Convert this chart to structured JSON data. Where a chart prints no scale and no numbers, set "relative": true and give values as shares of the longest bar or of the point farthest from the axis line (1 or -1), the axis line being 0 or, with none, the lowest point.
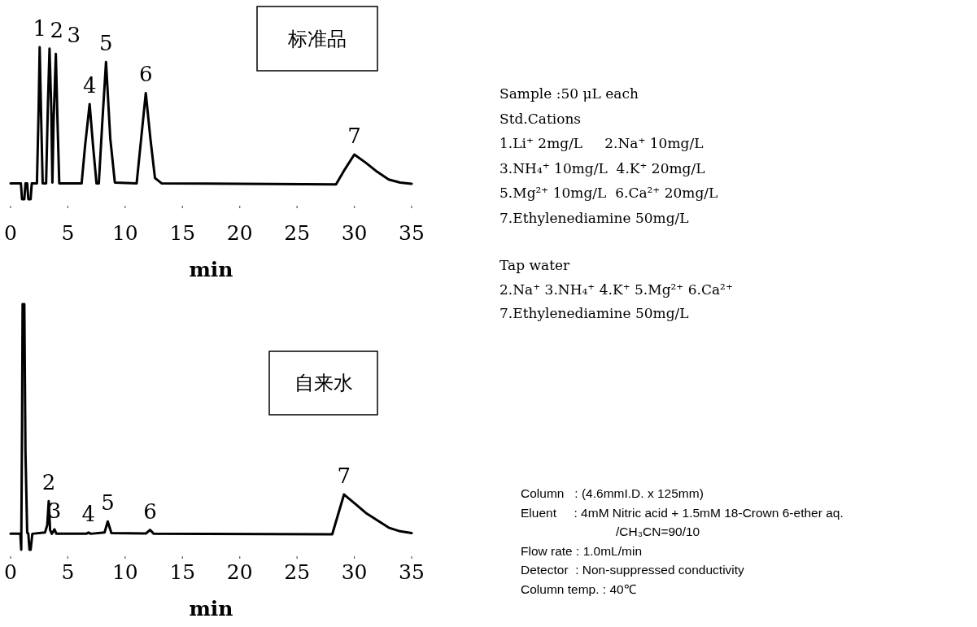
{
  "chart_data": [
    {
      "type": "line",
      "title": "标准品",
      "xlabel": "min",
      "color": "#000000",
      "relative": true,
      "xlim": [
        0,
        35
      ],
      "xticks": [
        0,
        5,
        10,
        15,
        20,
        25,
        30,
        35
      ],
      "x": [
        0,
        0.9,
        1.0,
        1.2,
        1.3,
        1.45,
        1.55,
        1.75,
        1.85,
        2.3,
        2.45,
        2.54,
        2.65,
        2.8,
        3.1,
        3.25,
        3.4,
        3.55,
        3.65,
        3.75,
        3.95,
        4.1,
        4.25,
        6.2,
        6.5,
        6.9,
        7.2,
        7.5,
        7.7,
        8.0,
        8.33,
        8.7,
        9.1,
        11.0,
        11.4,
        11.8,
        12.2,
        12.6,
        13.2,
        28.4,
        29.2,
        30.0,
        31,
        32,
        33,
        34,
        35
      ],
      "values": [
        0.104,
        0.104,
        0.0,
        0.0,
        0.104,
        0.104,
        0.0,
        0.0,
        0.104,
        0.104,
        0.6,
        1.0,
        0.6,
        0.104,
        0.104,
        0.6,
        0.99,
        0.6,
        0.11,
        0.5,
        0.956,
        0.5,
        0.104,
        0.104,
        0.35,
        0.626,
        0.35,
        0.104,
        0.104,
        0.5,
        0.903,
        0.4,
        0.11,
        0.104,
        0.4,
        0.698,
        0.4,
        0.14,
        0.104,
        0.098,
        0.2,
        0.294,
        0.24,
        0.18,
        0.13,
        0.11,
        0.102
      ],
      "annotations": [
        {
          "text": "1",
          "x": 2.54,
          "y": 1.0
        },
        {
          "text": "2",
          "x": 3.4,
          "y": 0.99
        },
        {
          "text": "3",
          "x": 3.95,
          "y": 0.956
        },
        {
          "text": "4",
          "x": 6.9,
          "y": 0.626
        },
        {
          "text": "5",
          "x": 8.33,
          "y": 0.903
        },
        {
          "text": "6",
          "x": 11.8,
          "y": 0.698
        },
        {
          "text": "7",
          "x": 30.0,
          "y": 0.294
        },
        "Sample :50 μL each",
        "Std.Cations",
        "1.Li⁺ 2mg/L     2.Na⁺ 10mg/L",
        "3.NH₄⁺ 10mg/L  4.K⁺ 20mg/L",
        "5.Mg²⁺ 10mg/L  6.Ca²⁺ 20mg/L",
        "7.Ethylenediamine 50mg/L"
      ]
    },
    {
      "type": "line",
      "title": "自来水",
      "xlabel": "min",
      "color": "#000000",
      "relative": true,
      "xlim": [
        0,
        35
      ],
      "xticks": [
        0,
        5,
        10,
        15,
        20,
        25,
        30,
        35
      ],
      "x": [
        0,
        0.85,
        0.93,
        1.0,
        1.05,
        1.2,
        1.3,
        1.45,
        1.55,
        1.65,
        1.75,
        1.9,
        3.0,
        3.2,
        3.33,
        3.45,
        3.6,
        3.83,
        4.0,
        6.6,
        6.8,
        7.0,
        8.2,
        8.48,
        8.8,
        11.8,
        12.17,
        12.5,
        28.07,
        29.1,
        30,
        31,
        32,
        33,
        34,
        35
      ],
      "values": [
        0.065,
        0.065,
        0.0,
        0.5,
        1.0,
        1.0,
        0.4,
        0.07,
        0.065,
        0.0,
        0.0,
        0.065,
        0.07,
        0.1,
        0.198,
        0.08,
        0.065,
        0.083,
        0.065,
        0.065,
        0.07,
        0.065,
        0.07,
        0.115,
        0.068,
        0.066,
        0.081,
        0.065,
        0.063,
        0.225,
        0.19,
        0.15,
        0.12,
        0.09,
        0.075,
        0.068
      ],
      "annotations": [
        {
          "text": "2",
          "x": 3.33,
          "y": 0.198
        },
        {
          "text": "3",
          "x": 3.83,
          "y": 0.083
        },
        {
          "text": "4",
          "x": 6.8,
          "y": 0.07
        },
        {
          "text": "5",
          "x": 8.48,
          "y": 0.115
        },
        {
          "text": "6",
          "x": 12.17,
          "y": 0.081
        },
        {
          "text": "7",
          "x": 29.1,
          "y": 0.225
        },
        "Tap water",
        "2.Na⁺ 3.NH₄⁺ 4.K⁺ 5.Mg²⁺ 6.Ca²⁺",
        "7.Ethylenediamine 50mg/L",
        "Column   : (4.6mmI.D. x 125mm)",
        "Eluent     : 4mM Nitric acid + 1.5mM 18-Crown 6-ether aq.",
        "/CH₃CN=90/10",
        "Flow rate : 1.0mL/min",
        "Detector  : Non-suppressed conductivity",
        "Column temp. : 40℃"
      ]
    }
  ]
}
